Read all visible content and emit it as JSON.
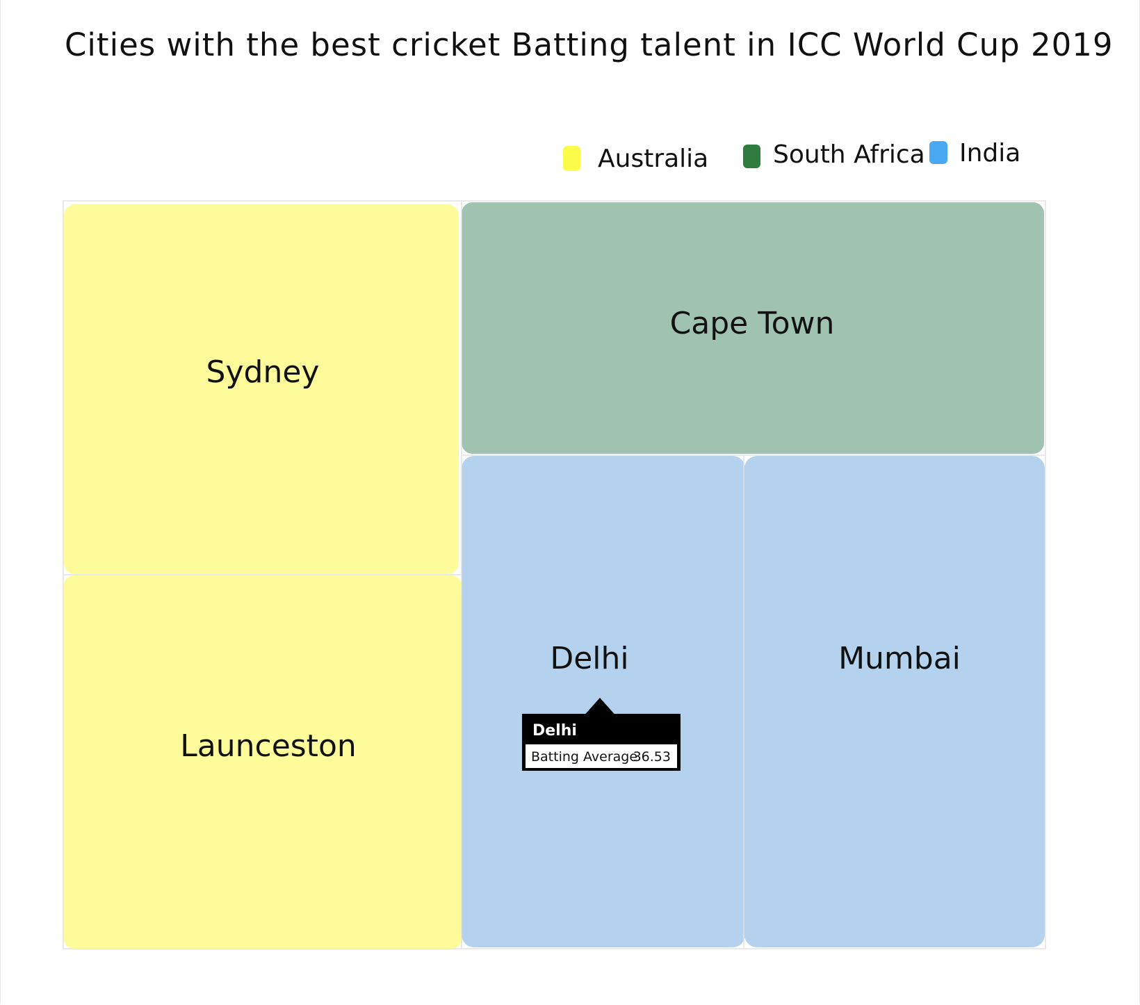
{
  "chart_data": {
    "type": "treemap",
    "title": "Cities with the best cricket Batting talent in ICC World Cup 2019",
    "legend": {
      "placement": "top-right",
      "entries": [
        {
          "name": "Australia",
          "color": "#fbfb4a"
        },
        {
          "name": "South Africa",
          "color": "#2e7d3e"
        },
        {
          "name": "India",
          "color": "#4aa8f0"
        }
      ]
    },
    "groups": [
      {
        "name": "Australia",
        "fill": "#fefb9b",
        "cities": [
          {
            "name": "Sydney"
          },
          {
            "name": "Launceston"
          }
        ]
      },
      {
        "name": "South Africa",
        "fill": "#a0c2b0",
        "cities": [
          {
            "name": "Cape Town"
          }
        ]
      },
      {
        "name": "India",
        "fill": "#b4d2ee",
        "cities": [
          {
            "name": "Delhi"
          },
          {
            "name": "Mumbai"
          }
        ]
      }
    ],
    "tooltip": {
      "city": "Delhi",
      "metric_label": "Batting Average",
      "value": "36.53"
    }
  }
}
